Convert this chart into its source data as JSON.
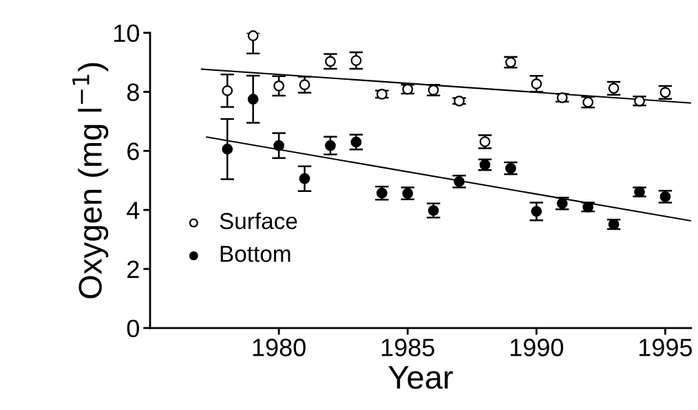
{
  "chart_data": {
    "type": "scatter",
    "xlabel": "Year",
    "ylabel": "Oxygen (mg l$^{−1}$)",
    "x": [
      1978,
      1979,
      1980,
      1981,
      1982,
      1983,
      1984,
      1985,
      1986,
      1987,
      1988,
      1989,
      1990,
      1991,
      1992,
      1993,
      1994,
      1995
    ],
    "series": [
      {
        "name": "Surface",
        "color": "#ffffff",
        "marker": "circle",
        "values": [
          8.04,
          9.9,
          8.2,
          8.24,
          9.03,
          9.06,
          7.92,
          8.09,
          8.06,
          7.69,
          6.31,
          9.0,
          8.27,
          7.8,
          7.65,
          8.12,
          7.69,
          7.98
        ],
        "errors": [
          0.55,
          [
            9.3,
            10.0
          ],
          0.33,
          0.27,
          0.25,
          0.28,
          0.12,
          0.15,
          0.18,
          0.1,
          0.22,
          0.18,
          0.27,
          0.13,
          0.18,
          0.22,
          0.15,
          0.22
        ]
      },
      {
        "name": "Bottom",
        "color": "#000000",
        "marker": "circle",
        "values": [
          6.06,
          7.75,
          6.18,
          5.06,
          6.18,
          6.3,
          4.57,
          4.56,
          3.98,
          4.96,
          5.53,
          5.41,
          3.95,
          4.22,
          4.1,
          3.51,
          4.61,
          4.45
        ],
        "errors": [
          1.02,
          0.8,
          0.42,
          0.42,
          0.3,
          0.25,
          0.22,
          0.2,
          0.24,
          0.2,
          0.18,
          0.2,
          0.3,
          0.2,
          0.15,
          0.16,
          0.15,
          0.2
        ]
      },
      {
        "type": "line",
        "color": "#000000",
        "marker": "none",
        "x": [
          1977.0,
          1996.0
        ],
        "values": [
          8.77,
          7.62
        ]
      },
      {
        "type": "line",
        "color": "#000000",
        "marker": "none",
        "x": [
          1977.2,
          1996.0
        ],
        "values": [
          6.47,
          3.63
        ]
      }
    ],
    "xlim": [
      1975,
      1996
    ],
    "xticks": [
      1980,
      1985,
      1990,
      1995
    ],
    "ylim": [
      0,
      10
    ],
    "yticks": [
      0,
      2,
      4,
      6,
      8,
      10
    ],
    "grid": false,
    "legend": "center left"
  }
}
